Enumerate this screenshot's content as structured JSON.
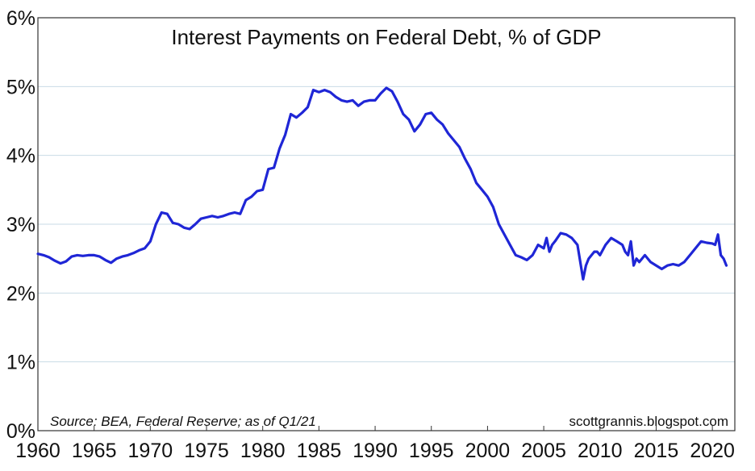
{
  "chart_data": {
    "type": "line",
    "title": "Interest Payments on Federal Debt, % of GDP",
    "source": "Source: BEA, Federal Reserve; as of Q1/21",
    "credit": "scottgrannis.blogspot.com",
    "xlim": [
      1960,
      2022
    ],
    "ylim": [
      0,
      6
    ],
    "x_ticks": [
      1960,
      1965,
      1970,
      1975,
      1980,
      1985,
      1990,
      1995,
      2000,
      2005,
      2010,
      2015,
      2020
    ],
    "y_ticks": [
      {
        "value": 0,
        "label": "0%"
      },
      {
        "value": 1,
        "label": "1%"
      },
      {
        "value": 2,
        "label": "2%"
      },
      {
        "value": 3,
        "label": "3%"
      },
      {
        "value": 4,
        "label": "4%"
      },
      {
        "value": 5,
        "label": "5%"
      },
      {
        "value": 6,
        "label": "6%"
      }
    ],
    "grid": true,
    "line_color": "#1f26d6",
    "series": [
      {
        "x": [
          1960.0,
          1960.5,
          1961.0,
          1961.5,
          1962.0,
          1962.5,
          1963.0,
          1963.5,
          1964.0,
          1964.5,
          1965.0,
          1965.5,
          1966.0,
          1966.5,
          1967.0,
          1967.5,
          1968.0,
          1968.5,
          1969.0,
          1969.5,
          1970.0,
          1970.5,
          1971.0,
          1971.5,
          1972.0,
          1972.5,
          1973.0,
          1973.5,
          1974.0,
          1974.5,
          1975.0,
          1975.5,
          1976.0,
          1976.5,
          1977.0,
          1977.5,
          1978.0,
          1978.5,
          1979.0,
          1979.5,
          1980.0,
          1980.5,
          1981.0,
          1981.5,
          1982.0,
          1982.5,
          1983.0,
          1983.5,
          1984.0,
          1984.5,
          1985.0,
          1985.5,
          1986.0,
          1986.5,
          1987.0,
          1987.5,
          1988.0,
          1988.5,
          1989.0,
          1989.5,
          1990.0,
          1990.5,
          1991.0,
          1991.5,
          1992.0,
          1992.5,
          1993.0,
          1993.5,
          1994.0,
          1994.5,
          1995.0,
          1995.5,
          1996.0,
          1996.5,
          1997.0,
          1997.5,
          1998.0,
          1998.5,
          1999.0,
          1999.5,
          2000.0,
          2000.5,
          2001.0,
          2001.5,
          2002.0,
          2002.5,
          2003.0,
          2003.5,
          2004.0,
          2004.5,
          2005.0,
          2005.25,
          2005.5,
          2005.75,
          2006.0,
          2006.5,
          2007.0,
          2007.5,
          2008.0,
          2008.25,
          2008.5,
          2008.75,
          2009.0,
          2009.25,
          2009.5,
          2009.75,
          2010.0,
          2010.5,
          2011.0,
          2011.5,
          2012.0,
          2012.25,
          2012.5,
          2012.75,
          2013.0,
          2013.25,
          2013.5,
          2014.0,
          2014.5,
          2015.0,
          2015.5,
          2016.0,
          2016.5,
          2017.0,
          2017.5,
          2018.0,
          2018.5,
          2019.0,
          2019.5,
          2020.0,
          2020.25,
          2020.5,
          2020.75,
          2021.0,
          2021.25
        ],
        "y": [
          2.57,
          2.55,
          2.52,
          2.47,
          2.43,
          2.46,
          2.53,
          2.55,
          2.54,
          2.55,
          2.55,
          2.53,
          2.48,
          2.44,
          2.5,
          2.53,
          2.55,
          2.58,
          2.62,
          2.65,
          2.75,
          3.0,
          3.17,
          3.15,
          3.02,
          3.0,
          2.95,
          2.93,
          3.0,
          3.08,
          3.1,
          3.12,
          3.1,
          3.12,
          3.15,
          3.17,
          3.15,
          3.35,
          3.4,
          3.48,
          3.5,
          3.8,
          3.82,
          4.1,
          4.3,
          4.6,
          4.55,
          4.62,
          4.7,
          4.95,
          4.92,
          4.95,
          4.92,
          4.85,
          4.8,
          4.78,
          4.8,
          4.72,
          4.78,
          4.8,
          4.8,
          4.9,
          4.98,
          4.93,
          4.78,
          4.6,
          4.52,
          4.35,
          4.45,
          4.6,
          4.62,
          4.52,
          4.45,
          4.32,
          4.22,
          4.12,
          3.95,
          3.8,
          3.6,
          3.5,
          3.4,
          3.25,
          3.0,
          2.85,
          2.7,
          2.55,
          2.52,
          2.48,
          2.55,
          2.7,
          2.65,
          2.8,
          2.6,
          2.7,
          2.75,
          2.87,
          2.85,
          2.8,
          2.7,
          2.45,
          2.2,
          2.4,
          2.5,
          2.55,
          2.6,
          2.6,
          2.55,
          2.7,
          2.8,
          2.75,
          2.7,
          2.6,
          2.55,
          2.75,
          2.4,
          2.5,
          2.45,
          2.55,
          2.45,
          2.4,
          2.35,
          2.4,
          2.42,
          2.4,
          2.45,
          2.55,
          2.65,
          2.75,
          2.73,
          2.72,
          2.7,
          2.85,
          2.55,
          2.5,
          2.4
        ]
      }
    ]
  }
}
